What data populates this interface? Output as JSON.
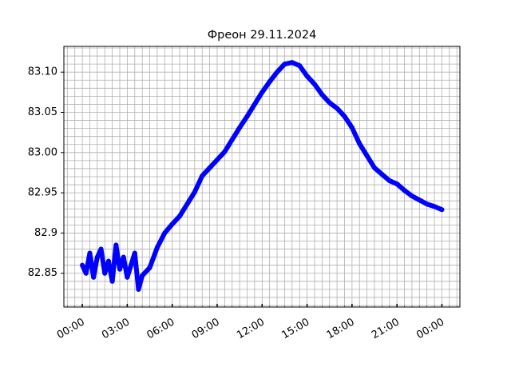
{
  "chart_data": {
    "type": "line",
    "title": "Фреон 29.11.2024",
    "x": [
      0,
      0.25,
      0.5,
      0.75,
      1,
      1.25,
      1.5,
      1.75,
      2,
      2.25,
      2.5,
      2.75,
      3,
      3.25,
      3.5,
      3.75,
      4,
      4.5,
      5,
      5.5,
      6,
      6.5,
      7,
      7.5,
      8,
      8.5,
      9,
      9.5,
      10,
      10.5,
      11,
      11.5,
      12,
      12.5,
      13,
      13.5,
      14,
      14.5,
      15,
      15.5,
      16,
      16.5,
      17,
      17.5,
      18,
      18.5,
      19,
      19.5,
      20,
      20.5,
      21,
      21.5,
      22,
      22.5,
      23,
      23.5,
      24
    ],
    "series": [
      {
        "name": "Фреон",
        "color": "#0000ff",
        "values": [
          82.86,
          82.85,
          82.875,
          82.845,
          82.87,
          82.88,
          82.85,
          82.865,
          82.84,
          82.885,
          82.855,
          82.87,
          82.845,
          82.86,
          82.875,
          82.83,
          82.847,
          82.857,
          82.882,
          82.9,
          82.911,
          82.921,
          82.936,
          82.951,
          82.971,
          82.981,
          82.991,
          83.001,
          83.016,
          83.031,
          83.045,
          83.06,
          83.075,
          83.088,
          83.1,
          83.11,
          83.112,
          83.108,
          83.095,
          83.085,
          83.072,
          83.062,
          83.055,
          83.045,
          83.031,
          83.011,
          82.996,
          82.981,
          82.973,
          82.965,
          82.961,
          82.953,
          82.946,
          82.941,
          82.936,
          82.933,
          82.929
        ]
      }
    ],
    "xlim": [
      -1.23,
      25.2
    ],
    "ylim": [
      82.808,
      83.132
    ],
    "xticks": [
      {
        "value": 0,
        "label": "00:00"
      },
      {
        "value": 3,
        "label": "03:00"
      },
      {
        "value": 6,
        "label": "06:00"
      },
      {
        "value": 9,
        "label": "09:00"
      },
      {
        "value": 12,
        "label": "12:00"
      },
      {
        "value": 15,
        "label": "15:00"
      },
      {
        "value": 18,
        "label": "18:00"
      },
      {
        "value": 21,
        "label": "21:00"
      },
      {
        "value": 24,
        "label": "00:00"
      }
    ],
    "yticks": [
      82.85,
      82.9,
      82.95,
      {
        "value": 83.0,
        "label": "83.00"
      },
      83.05,
      {
        "value": 83.1,
        "label": "83.10"
      }
    ],
    "minor_xticks": [
      -1,
      -0.5,
      0.5,
      1,
      1.5,
      2,
      2.5,
      3.5,
      4,
      4.5,
      5,
      5.5,
      6.5,
      7,
      7.5,
      8,
      8.5,
      9.5,
      10,
      10.5,
      11,
      11.5,
      12.5,
      13,
      13.5,
      14,
      14.5,
      15.5,
      16,
      16.5,
      17,
      17.5,
      18.5,
      19,
      19.5,
      20,
      20.5,
      21.5,
      22,
      22.5,
      23,
      23.5,
      24.5,
      25
    ],
    "minor_yticks": [
      82.81,
      82.82,
      82.83,
      82.84,
      82.86,
      82.87,
      82.88,
      82.89,
      82.91,
      82.92,
      82.93,
      82.94,
      82.96,
      82.97,
      82.98,
      82.99,
      83.01,
      83.02,
      83.03,
      83.04,
      83.06,
      83.07,
      83.08,
      83.09,
      83.11,
      83.12,
      83.13
    ],
    "grid": true
  }
}
